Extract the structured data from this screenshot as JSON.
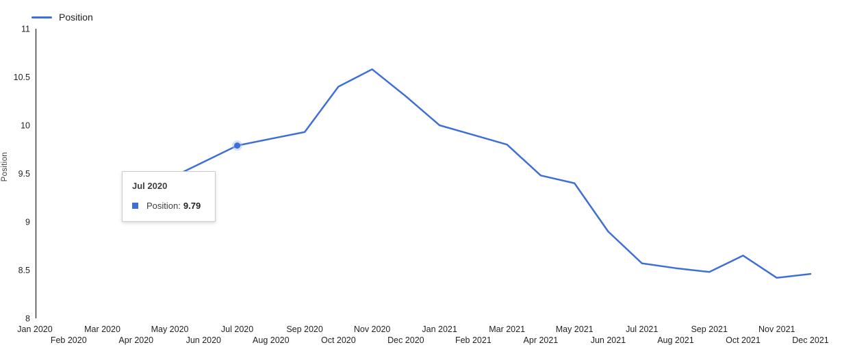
{
  "legend": {
    "label": "Position"
  },
  "y_axis_title": "Position",
  "tooltip": {
    "title": "Jul 2020",
    "series_label": "Position:",
    "value": "9.79"
  },
  "colors": {
    "line": "#3e6fd6",
    "marker_halo": "#9fbcf0",
    "axis_line": "#1f1f1f",
    "label_text": "#1f1f1f"
  },
  "chart_data": {
    "type": "line",
    "title": "",
    "xlabel": "",
    "ylabel": "Position",
    "ylim": [
      8,
      11
    ],
    "y_ticks": [
      "8",
      "8.5",
      "9",
      "9.5",
      "10",
      "10.5",
      "11"
    ],
    "grid": false,
    "legend_position": "top-left",
    "x_categories": [
      "Jan 2020",
      "Feb 2020",
      "Mar 2020",
      "Apr 2020",
      "May 2020",
      "Jun 2020",
      "Jul 2020",
      "Aug 2020",
      "Sep 2020",
      "Oct 2020",
      "Nov 2020",
      "Dec 2020",
      "Jan 2021",
      "Feb 2021",
      "Mar 2021",
      "Apr 2021",
      "May 2021",
      "Jun 2021",
      "Jul 2021",
      "Aug 2021",
      "Sep 2021",
      "Oct 2021",
      "Nov 2021",
      "Dec 2021"
    ],
    "series": [
      {
        "name": "Position",
        "start_category": "May 2020",
        "values": [
          9.45,
          9.62,
          9.79,
          9.86,
          9.93,
          10.4,
          10.58,
          10.3,
          10.0,
          9.9,
          9.8,
          9.48,
          9.4,
          8.9,
          8.57,
          8.52,
          8.48,
          8.65,
          8.42,
          8.46
        ]
      }
    ],
    "highlight": {
      "category": "Jul 2020",
      "value": 9.79
    }
  }
}
